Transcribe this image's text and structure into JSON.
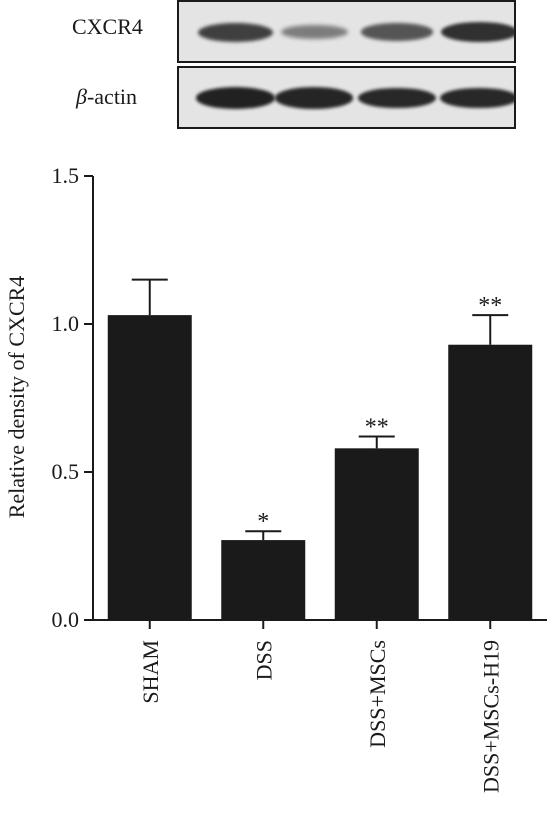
{
  "blot": {
    "rows": [
      {
        "label": "CXCR4",
        "intensities": [
          0.75,
          0.35,
          0.6,
          0.85
        ]
      },
      {
        "label_prefix": "β",
        "label_suffix": "-actin",
        "intensities": [
          0.95,
          0.92,
          0.9,
          0.9
        ]
      }
    ]
  },
  "chart_data": {
    "type": "bar",
    "categories": [
      "SHAM",
      "DSS",
      "DSS+MSCs",
      "DSS+MSCs-H19"
    ],
    "values": [
      1.03,
      0.27,
      0.58,
      0.93
    ],
    "errors": [
      0.12,
      0.03,
      0.04,
      0.1
    ],
    "significance": [
      "",
      "*",
      "**",
      "**"
    ],
    "ylabel": "Relative density of CXCR4",
    "ylim": [
      0,
      1.5
    ],
    "yticks": [
      "0.0",
      "0.5",
      "1.0",
      "1.5"
    ],
    "bar_color": "#1a1a1a",
    "grid": false
  }
}
